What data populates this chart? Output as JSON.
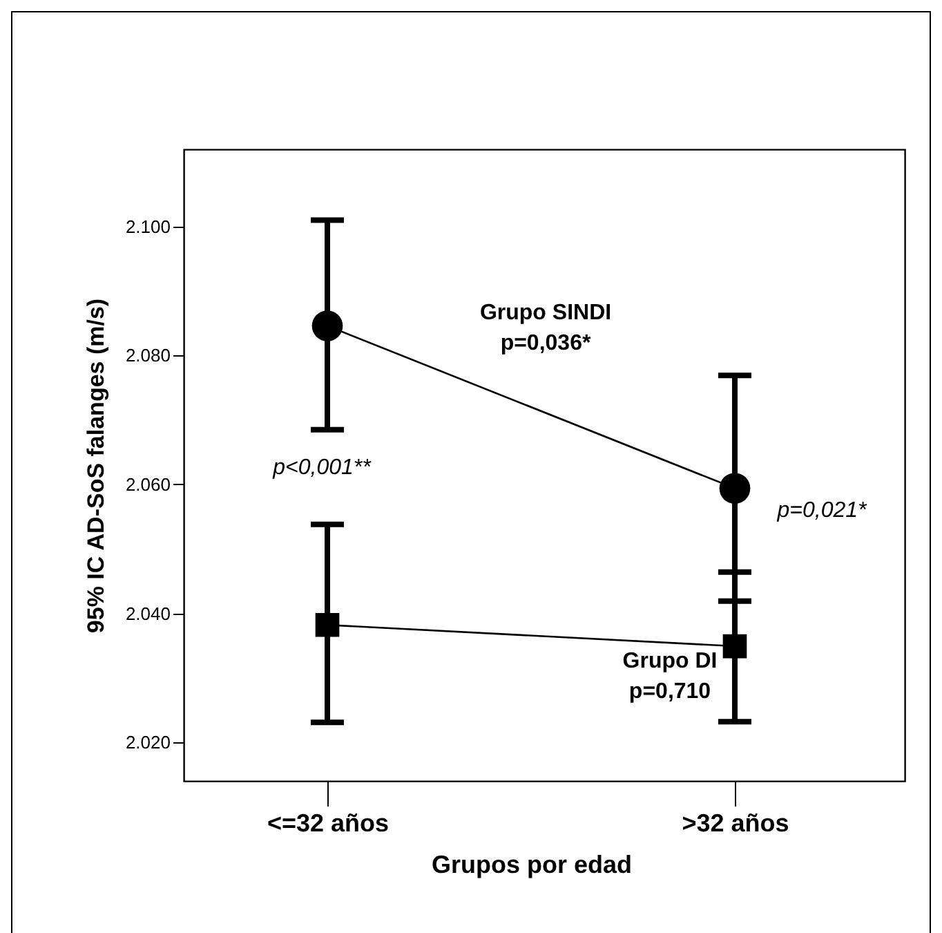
{
  "chart_data": {
    "type": "line",
    "xlabel": "Grupos por edad",
    "ylabel": "95% IC AD-SoS falanges (m/s)",
    "categories": [
      "<=32 años",
      ">32 años"
    ],
    "series": [
      {
        "name": "Grupo SINDI",
        "color": "#000000",
        "marker": "circle",
        "values": [
          2084.6,
          2059.4
        ],
        "errors": [
          [
            2068.5,
            2101
          ],
          [
            2041.9,
            2076.9
          ]
        ]
      },
      {
        "name": "Grupo DI",
        "color": "#000000",
        "marker": "square",
        "values": [
          2038.2,
          2034.9
        ],
        "errors": [
          [
            2023.1,
            2053.8
          ],
          [
            2023.2,
            2046.4
          ]
        ]
      }
    ],
    "ylim": [
      2014,
      2112
    ],
    "yticks": [
      {
        "value": 2020,
        "label": "2.020"
      },
      {
        "value": 2040,
        "label": "2.040"
      },
      {
        "value": 2060,
        "label": "2.060"
      },
      {
        "value": 2080,
        "label": "2.080"
      },
      {
        "value": 2100,
        "label": "2.100"
      }
    ],
    "annotations": [
      "p=0,036*",
      "p=0,710",
      "p<0,001**",
      "p=0,021*"
    ],
    "grid": false,
    "line_style": "solid"
  }
}
